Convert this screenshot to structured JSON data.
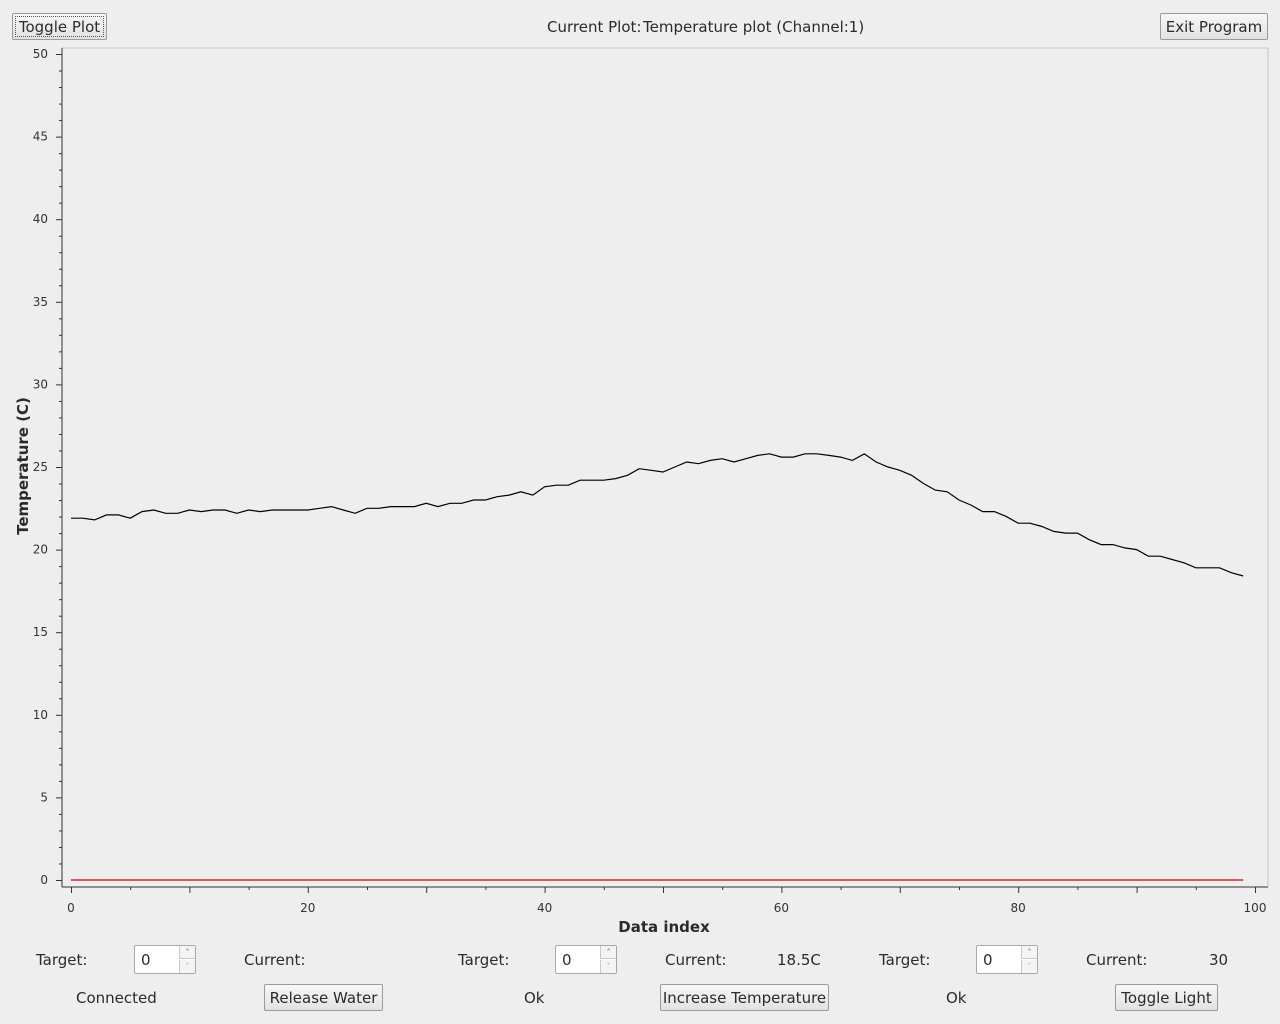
{
  "header": {
    "toggle_plot_label": "Toggle Plot",
    "current_plot_label": "Current Plot:",
    "current_plot_value": "Temperature plot (Channel:1)",
    "exit_label": "Exit Program"
  },
  "controls": [
    {
      "target_label": "Target:",
      "target_value": "0",
      "current_label": "Current:",
      "current_value": "",
      "status": "Connected",
      "action_label": "Release Water"
    },
    {
      "target_label": "Target:",
      "target_value": "0",
      "current_label": "Current:",
      "current_value": "18.5C",
      "status": "Ok",
      "action_label": "Increase Temperature"
    },
    {
      "target_label": "Target:",
      "target_value": "0",
      "current_label": "Current:",
      "current_value": "30",
      "status": "Ok",
      "action_label": "Toggle Light"
    }
  ],
  "colors": {
    "series_main": "#000000",
    "series_target": "#cc0000",
    "background": "#eeeeee"
  },
  "chart_data": {
    "type": "line",
    "xlabel": "Data index",
    "ylabel": "Temperature (C)",
    "xlim": [
      0,
      100
    ],
    "ylim": [
      0,
      50
    ],
    "x_ticks": [
      0,
      20,
      40,
      60,
      80,
      100
    ],
    "y_ticks": [
      0,
      5,
      10,
      15,
      20,
      25,
      30,
      35,
      40,
      45,
      50
    ],
    "grid": false,
    "series": [
      {
        "color": "#000000",
        "x": [
          0,
          1,
          2,
          3,
          4,
          5,
          6,
          7,
          8,
          9,
          10,
          11,
          12,
          13,
          14,
          15,
          16,
          17,
          18,
          19,
          20,
          21,
          22,
          23,
          24,
          25,
          26,
          27,
          28,
          29,
          30,
          31,
          32,
          33,
          34,
          35,
          36,
          37,
          38,
          39,
          40,
          41,
          42,
          43,
          44,
          45,
          46,
          47,
          48,
          49,
          50,
          51,
          52,
          53,
          54,
          55,
          56,
          57,
          58,
          59,
          60,
          61,
          62,
          63,
          64,
          65,
          66,
          67,
          68,
          69,
          70,
          71,
          72,
          73,
          74,
          75,
          76,
          77,
          78,
          79,
          80,
          81,
          82,
          83,
          84,
          85,
          86,
          87,
          88,
          89,
          90,
          91,
          92,
          93,
          94,
          95,
          96,
          97,
          98,
          99
        ],
        "values": [
          21.9,
          21.9,
          21.8,
          22.1,
          22.1,
          21.9,
          22.3,
          22.4,
          22.2,
          22.2,
          22.4,
          22.3,
          22.4,
          22.4,
          22.2,
          22.4,
          22.3,
          22.4,
          22.4,
          22.4,
          22.4,
          22.5,
          22.6,
          22.4,
          22.2,
          22.5,
          22.5,
          22.6,
          22.6,
          22.6,
          22.8,
          22.6,
          22.8,
          22.8,
          23.0,
          23.0,
          23.2,
          23.3,
          23.5,
          23.3,
          23.8,
          23.9,
          23.9,
          24.2,
          24.2,
          24.2,
          24.3,
          24.5,
          24.9,
          24.8,
          24.7,
          25.0,
          25.3,
          25.2,
          25.4,
          25.5,
          25.3,
          25.5,
          25.7,
          25.8,
          25.6,
          25.6,
          25.8,
          25.8,
          25.7,
          25.6,
          25.4,
          25.8,
          25.3,
          25.0,
          24.8,
          24.5,
          24.0,
          23.6,
          23.5,
          23.0,
          22.7,
          22.3,
          22.3,
          22.0,
          21.6,
          21.6,
          21.4,
          21.1,
          21.0,
          21.0,
          20.6,
          20.3,
          20.3,
          20.1,
          20.0,
          19.6,
          19.6,
          19.4,
          19.2,
          18.9,
          18.9,
          18.9,
          18.6,
          18.4
        ]
      },
      {
        "color": "#cc0000",
        "x": [
          0,
          99
        ],
        "values": [
          0,
          0
        ]
      }
    ]
  }
}
